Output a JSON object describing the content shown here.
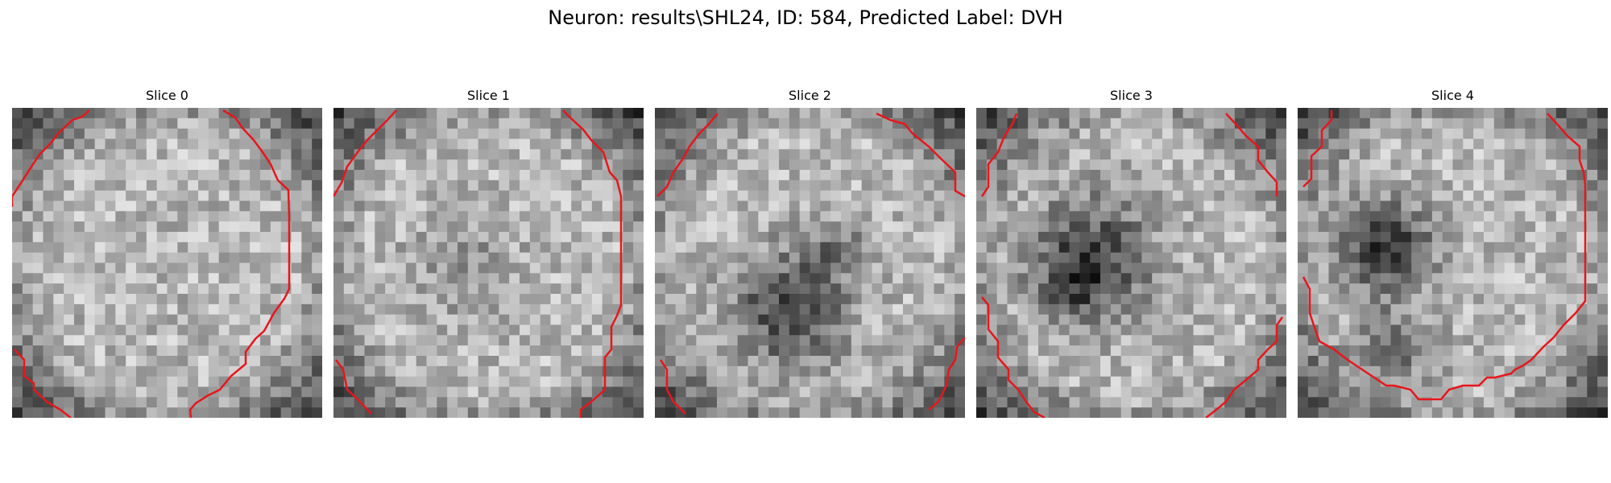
{
  "figure": {
    "title": "Neuron: results\\SHL24, ID: 584, Predicted Label: DVH"
  },
  "colors": {
    "contour": "#e8161b"
  },
  "panels": [
    {
      "title": "Slice 0"
    },
    {
      "title": "Slice 1"
    },
    {
      "title": "Slice 2"
    },
    {
      "title": "Slice 3"
    },
    {
      "title": "Slice 4"
    }
  ]
}
